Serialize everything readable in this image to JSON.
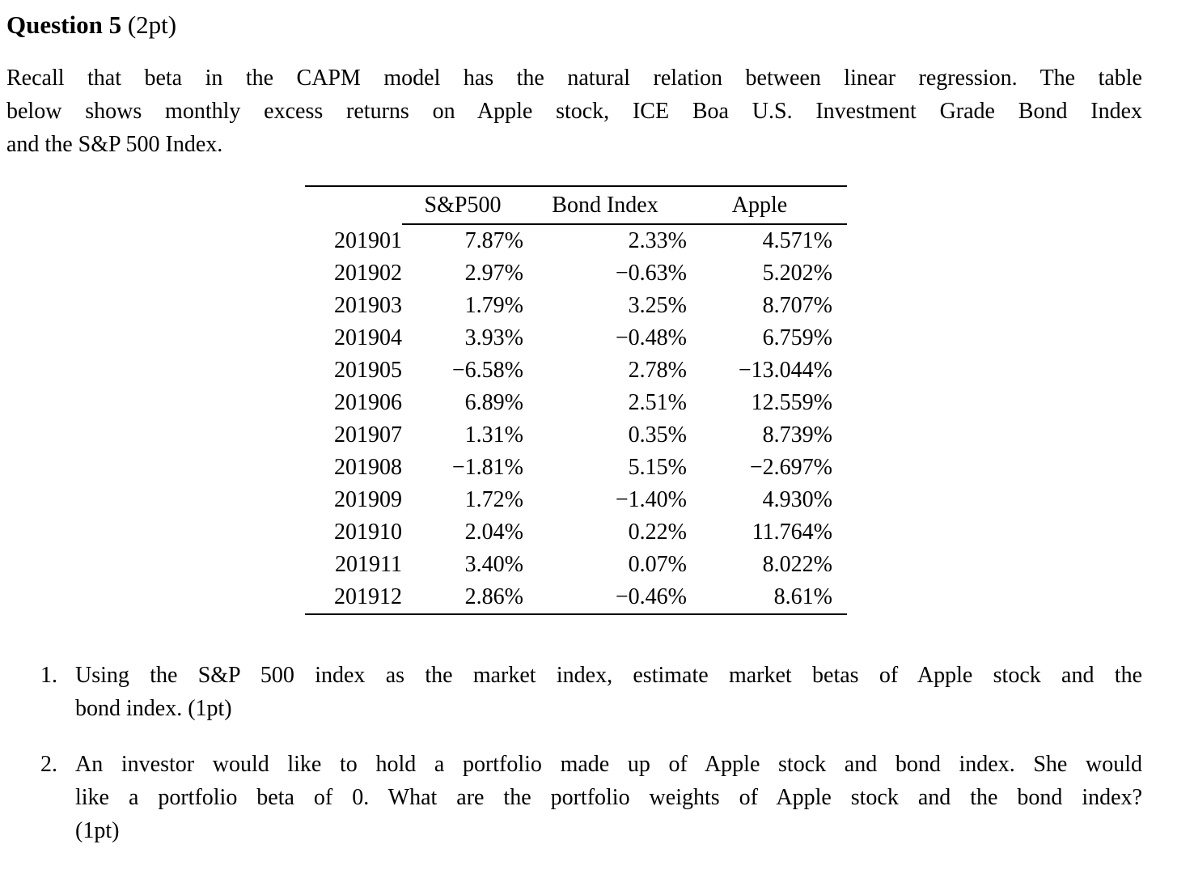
{
  "heading": {
    "title": "Question 5",
    "points": "(2pt)"
  },
  "intro": {
    "line1": "Recall that beta in the CAPM model has the natural relation between linear regression. The table",
    "line2": "below shows monthly excess returns on Apple stock, ICE Boa U.S. Investment Grade Bond Index",
    "line3": "and the S&P 500 Index."
  },
  "table": {
    "headers": {
      "month": "",
      "sp500": "S&P500",
      "bond": "Bond Index",
      "apple": "Apple"
    },
    "rows": [
      {
        "month": "201901",
        "sp500": "7.87%",
        "bond": "2.33%",
        "apple": "4.571%"
      },
      {
        "month": "201902",
        "sp500": "2.97%",
        "bond": "−0.63%",
        "apple": "5.202%"
      },
      {
        "month": "201903",
        "sp500": "1.79%",
        "bond": "3.25%",
        "apple": "8.707%"
      },
      {
        "month": "201904",
        "sp500": "3.93%",
        "bond": "−0.48%",
        "apple": "6.759%"
      },
      {
        "month": "201905",
        "sp500": "−6.58%",
        "bond": "2.78%",
        "apple": "−13.044%"
      },
      {
        "month": "201906",
        "sp500": "6.89%",
        "bond": "2.51%",
        "apple": "12.559%"
      },
      {
        "month": "201907",
        "sp500": "1.31%",
        "bond": "0.35%",
        "apple": "8.739%"
      },
      {
        "month": "201908",
        "sp500": "−1.81%",
        "bond": "5.15%",
        "apple": "−2.697%"
      },
      {
        "month": "201909",
        "sp500": "1.72%",
        "bond": "−1.40%",
        "apple": "4.930%"
      },
      {
        "month": "201910",
        "sp500": "2.04%",
        "bond": "0.22%",
        "apple": "11.764%"
      },
      {
        "month": "201911",
        "sp500": "3.40%",
        "bond": "0.07%",
        "apple": "8.022%"
      },
      {
        "month": "201912",
        "sp500": "2.86%",
        "bond": "−0.46%",
        "apple": "8.61%"
      }
    ]
  },
  "questions": {
    "q1": {
      "number": "1.",
      "line1": "Using the S&P 500 index as the market index, estimate market betas of Apple stock and the",
      "line2": "bond index. (1pt)"
    },
    "q2": {
      "number": "2.",
      "line1": "An investor would like to hold a portfolio made up of Apple stock and bond index. She would",
      "line2": "like a portfolio beta of 0. What are the portfolio weights of Apple stock and the bond index?",
      "line3": "(1pt)"
    }
  },
  "colors": {
    "text": "#000000",
    "background": "#ffffff",
    "rule": "#000000"
  }
}
